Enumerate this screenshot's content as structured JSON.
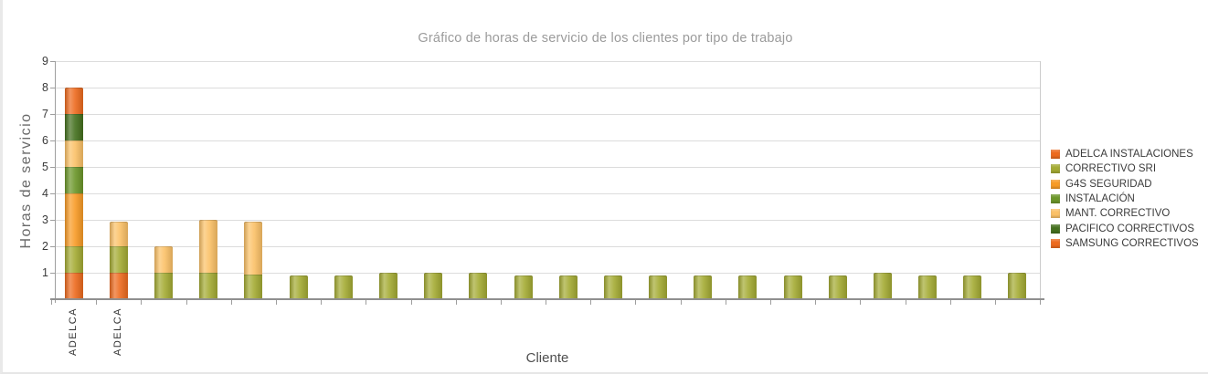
{
  "chart_data": {
    "type": "bar",
    "stacked": true,
    "title": "Gráfico de horas de servicio de los clientes por tipo de trabajo",
    "xlabel": "Cliente",
    "ylabel": "Horas de servicio",
    "ylim": [
      0,
      9
    ],
    "yticks": [
      1,
      2,
      3,
      4,
      5,
      6,
      7,
      8,
      9
    ],
    "grid": "horizontal",
    "legend_position": "right-middle",
    "series": [
      {
        "name": "ADELCA INSTALACIONES",
        "color": "#ED6A1E"
      },
      {
        "name": "CORRECTIVO SRI",
        "color": "#A4AB33"
      },
      {
        "name": "G4S SEGURIDAD",
        "color": "#F89B26"
      },
      {
        "name": "INSTALACIÓN",
        "color": "#6B9629"
      },
      {
        "name": "MANT. CORRECTIVO",
        "color": "#FBC167"
      },
      {
        "name": "PACIFICO CORRECTIVOS",
        "color": "#44701E"
      },
      {
        "name": "SAMSUNG CORRECTIVOS",
        "color": "#ED6A1E"
      }
    ],
    "bars": [
      {
        "label": "ADELCA",
        "segments": [
          {
            "series": "ADELCA INSTALACIONES",
            "value": 1
          },
          {
            "series": "CORRECTIVO SRI",
            "value": 1
          },
          {
            "series": "G4S SEGURIDAD",
            "value": 2
          },
          {
            "series": "INSTALACIÓN",
            "value": 1
          },
          {
            "series": "MANT. CORRECTIVO",
            "value": 1
          },
          {
            "series": "PACIFICO CORRECTIVOS",
            "value": 1
          },
          {
            "series": "SAMSUNG CORRECTIVOS",
            "value": 1
          }
        ]
      },
      {
        "label": "ADELCA",
        "segments": [
          {
            "series": "ADELCA INSTALACIONES",
            "value": 1
          },
          {
            "series": "CORRECTIVO SRI",
            "value": 1
          },
          {
            "series": "MANT. CORRECTIVO",
            "value": 0.93
          }
        ]
      },
      {
        "label": "",
        "segments": [
          {
            "series": "CORRECTIVO SRI",
            "value": 1
          },
          {
            "series": "MANT. CORRECTIVO",
            "value": 1
          }
        ]
      },
      {
        "label": "",
        "segments": [
          {
            "series": "CORRECTIVO SRI",
            "value": 1
          },
          {
            "series": "MANT. CORRECTIVO",
            "value": 2
          }
        ]
      },
      {
        "label": "",
        "segments": [
          {
            "series": "CORRECTIVO SRI",
            "value": 0.93
          },
          {
            "series": "MANT. CORRECTIVO",
            "value": 2
          }
        ]
      },
      {
        "label": "",
        "segments": [
          {
            "series": "CORRECTIVO SRI",
            "value": 0.9
          }
        ]
      },
      {
        "label": "",
        "segments": [
          {
            "series": "CORRECTIVO SRI",
            "value": 0.9
          }
        ]
      },
      {
        "label": "",
        "segments": [
          {
            "series": "CORRECTIVO SRI",
            "value": 1
          }
        ]
      },
      {
        "label": "",
        "segments": [
          {
            "series": "CORRECTIVO SRI",
            "value": 1
          }
        ]
      },
      {
        "label": "",
        "segments": [
          {
            "series": "CORRECTIVO SRI",
            "value": 1
          }
        ]
      },
      {
        "label": "",
        "segments": [
          {
            "series": "CORRECTIVO SRI",
            "value": 0.9
          }
        ]
      },
      {
        "label": "",
        "segments": [
          {
            "series": "CORRECTIVO SRI",
            "value": 0.9
          }
        ]
      },
      {
        "label": "",
        "segments": [
          {
            "series": "CORRECTIVO SRI",
            "value": 0.9
          }
        ]
      },
      {
        "label": "",
        "segments": [
          {
            "series": "CORRECTIVO SRI",
            "value": 0.9
          }
        ]
      },
      {
        "label": "",
        "segments": [
          {
            "series": "CORRECTIVO SRI",
            "value": 0.9
          }
        ]
      },
      {
        "label": "",
        "segments": [
          {
            "series": "CORRECTIVO SRI",
            "value": 0.9
          }
        ]
      },
      {
        "label": "",
        "segments": [
          {
            "series": "CORRECTIVO SRI",
            "value": 0.9
          }
        ]
      },
      {
        "label": "",
        "segments": [
          {
            "series": "CORRECTIVO SRI",
            "value": 0.9
          }
        ]
      },
      {
        "label": "",
        "segments": [
          {
            "series": "CORRECTIVO SRI",
            "value": 1
          }
        ]
      },
      {
        "label": "",
        "segments": [
          {
            "series": "CORRECTIVO SRI",
            "value": 0.9
          }
        ]
      },
      {
        "label": "",
        "segments": [
          {
            "series": "CORRECTIVO SRI",
            "value": 0.9
          }
        ]
      },
      {
        "label": "",
        "segments": [
          {
            "series": "CORRECTIVO SRI",
            "value": 1
          }
        ]
      }
    ]
  }
}
